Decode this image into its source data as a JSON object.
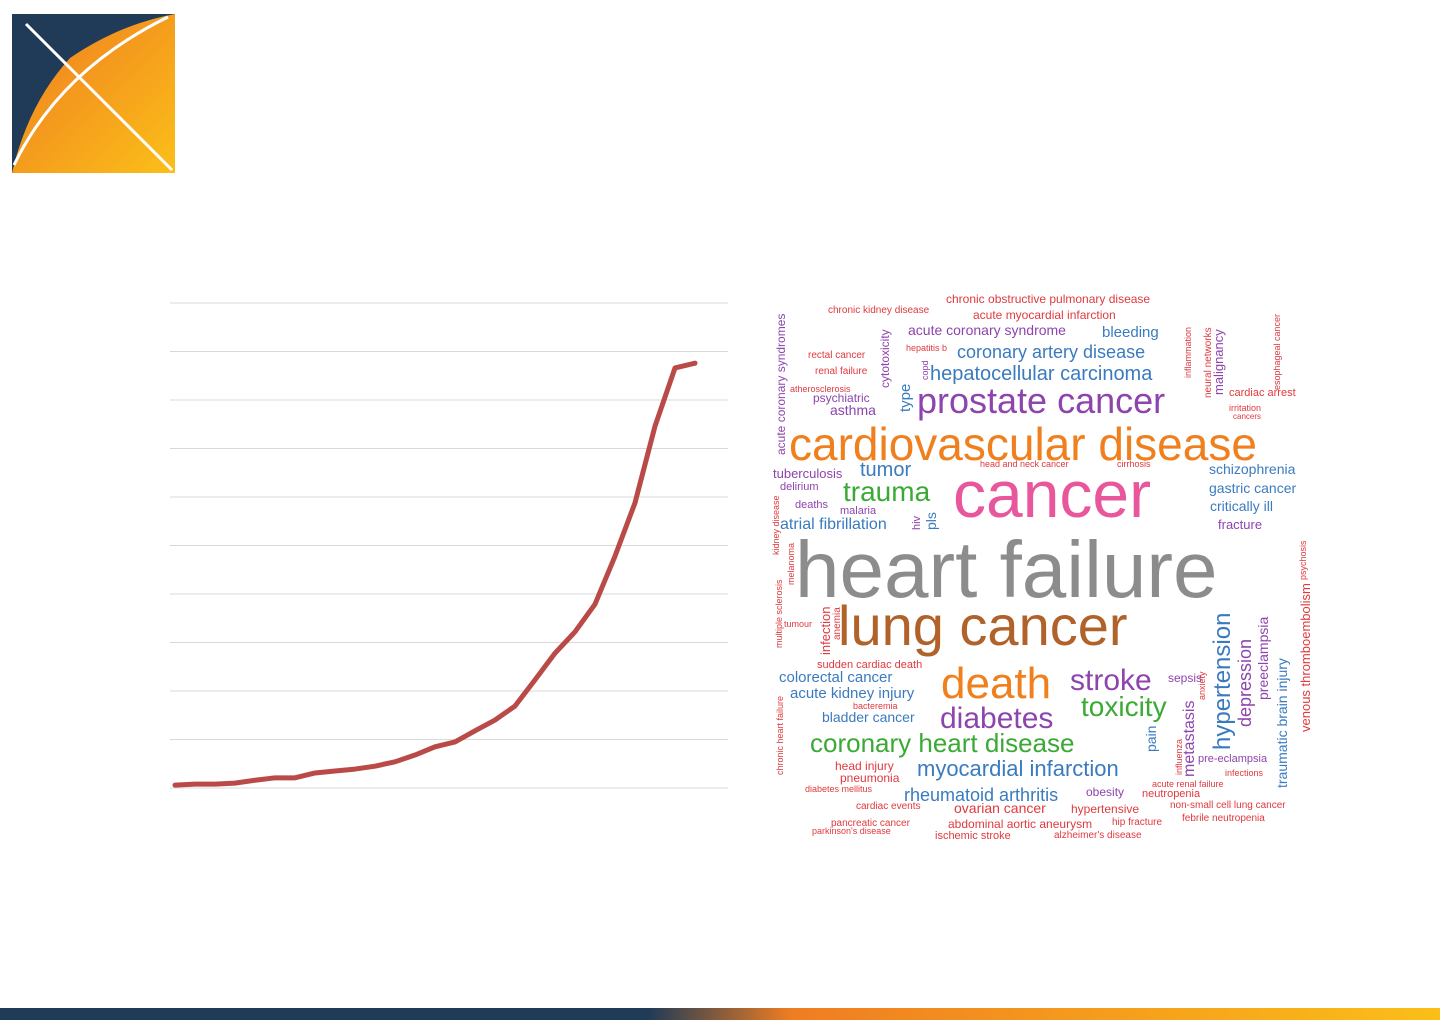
{
  "chart_data": {
    "type": "line",
    "color": "#b94a48",
    "grid": true,
    "ylim": [
      0,
      10
    ],
    "yticks": [
      0,
      1,
      2,
      3,
      4,
      5,
      6,
      7,
      8,
      9,
      10
    ],
    "values": [
      0.06,
      0.08,
      0.08,
      0.1,
      0.16,
      0.21,
      0.21,
      0.31,
      0.35,
      0.39,
      0.45,
      0.54,
      0.68,
      0.85,
      0.95,
      1.18,
      1.4,
      1.69,
      2.23,
      2.78,
      3.22,
      3.79,
      4.78,
      5.88,
      7.46,
      8.66,
      8.76
    ]
  },
  "word_cloud": {
    "words": [
      {
        "text": "chronic obstructive pulmonary disease",
        "color": "#e0393e"
      },
      {
        "text": "chronic kidney disease",
        "color": "#e0393e"
      },
      {
        "text": "acute myocardial infarction",
        "color": "#e0393e"
      },
      {
        "text": "acute coronary syndrome",
        "color": "#8e44ad"
      },
      {
        "text": "bleeding",
        "color": "#3a7bbf"
      },
      {
        "text": "hepatitis b",
        "color": "#e0393e"
      },
      {
        "text": "coronary artery disease",
        "color": "#3a7bbf"
      },
      {
        "text": "rectal cancer",
        "color": "#e0393e"
      },
      {
        "text": "renal failure",
        "color": "#e0393e"
      },
      {
        "text": "hepatocellular carcinoma",
        "color": "#3a7bbf"
      },
      {
        "text": "atherosclerosis",
        "color": "#e0393e"
      },
      {
        "text": "psychiatric",
        "color": "#8e44ad"
      },
      {
        "text": "asthma",
        "color": "#8e44ad"
      },
      {
        "text": "prostate cancer",
        "color": "#8e44ad"
      },
      {
        "text": "cardiac arrest",
        "color": "#e0393e"
      },
      {
        "text": "irritation",
        "color": "#e0393e"
      },
      {
        "text": "cancers",
        "color": "#e0393e"
      },
      {
        "text": "cardiovascular disease",
        "color": "#f07f1e"
      },
      {
        "text": "tuberculosis",
        "color": "#8e44ad"
      },
      {
        "text": "tumor",
        "color": "#3a7bbf"
      },
      {
        "text": "head and neck cancer",
        "color": "#e0393e"
      },
      {
        "text": "cirrhosis",
        "color": "#e0393e"
      },
      {
        "text": "schizophrenia",
        "color": "#3a7bbf"
      },
      {
        "text": "delirium",
        "color": "#8e44ad"
      },
      {
        "text": "trauma",
        "color": "#3aaa35"
      },
      {
        "text": "cancer",
        "color": "#e8579b"
      },
      {
        "text": "gastric cancer",
        "color": "#3a7bbf"
      },
      {
        "text": "deaths",
        "color": "#8e44ad"
      },
      {
        "text": "malaria",
        "color": "#8e44ad"
      },
      {
        "text": "critically ill",
        "color": "#3a7bbf"
      },
      {
        "text": "atrial fibrillation",
        "color": "#3a7bbf"
      },
      {
        "text": "fracture",
        "color": "#8e44ad"
      },
      {
        "text": "heart failure",
        "color": "#8c8c8c"
      },
      {
        "text": "lung cancer",
        "color": "#b0622a"
      },
      {
        "text": "tumour",
        "color": "#e0393e"
      },
      {
        "text": "sudden cardiac death",
        "color": "#e0393e"
      },
      {
        "text": "colorectal cancer",
        "color": "#3a7bbf"
      },
      {
        "text": "death",
        "color": "#f07f1e"
      },
      {
        "text": "stroke",
        "color": "#8e44ad"
      },
      {
        "text": "sepsis",
        "color": "#8e44ad"
      },
      {
        "text": "acute kidney injury",
        "color": "#3a7bbf"
      },
      {
        "text": "bacteremia",
        "color": "#e0393e"
      },
      {
        "text": "toxicity",
        "color": "#3aaa35"
      },
      {
        "text": "bladder cancer",
        "color": "#3a7bbf"
      },
      {
        "text": "diabetes",
        "color": "#8e44ad"
      },
      {
        "text": "coronary heart disease",
        "color": "#3aaa35"
      },
      {
        "text": "pre-eclampsia",
        "color": "#8e44ad"
      },
      {
        "text": "head injury",
        "color": "#e0393e"
      },
      {
        "text": "myocardial infarction",
        "color": "#3a7bbf"
      },
      {
        "text": "infections",
        "color": "#e0393e"
      },
      {
        "text": "pneumonia",
        "color": "#e0393e"
      },
      {
        "text": "acute renal failure",
        "color": "#e0393e"
      },
      {
        "text": "diabetes mellitus",
        "color": "#e0393e"
      },
      {
        "text": "rheumatoid arthritis",
        "color": "#3a7bbf"
      },
      {
        "text": "obesity",
        "color": "#8e44ad"
      },
      {
        "text": "neutropenia",
        "color": "#e0393e"
      },
      {
        "text": "cardiac events",
        "color": "#e0393e"
      },
      {
        "text": "ovarian cancer",
        "color": "#e0393e"
      },
      {
        "text": "hypertensive",
        "color": "#e0393e"
      },
      {
        "text": "non-small cell lung cancer",
        "color": "#e0393e"
      },
      {
        "text": "febrile neutropenia",
        "color": "#e0393e"
      },
      {
        "text": "pancreatic cancer",
        "color": "#e0393e"
      },
      {
        "text": "abdominal aortic aneurysm",
        "color": "#e0393e"
      },
      {
        "text": "hip fracture",
        "color": "#e0393e"
      },
      {
        "text": "parkinson's disease",
        "color": "#e0393e"
      },
      {
        "text": "ischemic stroke",
        "color": "#e0393e"
      },
      {
        "text": "alzheimer's disease",
        "color": "#e0393e"
      },
      {
        "text": "acute coronary syndromes",
        "color": "#8e44ad"
      },
      {
        "text": "cytotoxicity",
        "color": "#8e44ad"
      },
      {
        "text": "copd",
        "color": "#8e44ad"
      },
      {
        "text": "type",
        "color": "#3a7bbf"
      },
      {
        "text": "inflammation",
        "color": "#e0393e"
      },
      {
        "text": "neural networks",
        "color": "#e0393e"
      },
      {
        "text": "malignancy",
        "color": "#8e44ad"
      },
      {
        "text": "esophageal cancer",
        "color": "#e0393e"
      },
      {
        "text": "kidney disease",
        "color": "#e0393e"
      },
      {
        "text": "hiv",
        "color": "#8e44ad"
      },
      {
        "text": "pls",
        "color": "#3a7bbf"
      },
      {
        "text": "melanoma",
        "color": "#e0393e"
      },
      {
        "text": "multiple sclerosis",
        "color": "#e0393e"
      },
      {
        "text": "infection",
        "color": "#e0393e"
      },
      {
        "text": "anemia",
        "color": "#e0393e"
      },
      {
        "text": "psychosis",
        "color": "#e0393e"
      },
      {
        "text": "venous thromboembolism",
        "color": "#e0393e"
      },
      {
        "text": "chronic heart failure",
        "color": "#e0393e"
      },
      {
        "text": "traumatic brain injury",
        "color": "#3a7bbf"
      },
      {
        "text": "preeclampsia",
        "color": "#8e44ad"
      },
      {
        "text": "depression",
        "color": "#8e44ad"
      },
      {
        "text": "hypertension",
        "color": "#3a7bbf"
      },
      {
        "text": "anxiety",
        "color": "#e0393e"
      },
      {
        "text": "metastasis",
        "color": "#8e44ad"
      },
      {
        "text": "influenza",
        "color": "#e0393e"
      },
      {
        "text": "pain",
        "color": "#3a7bbf"
      }
    ]
  }
}
